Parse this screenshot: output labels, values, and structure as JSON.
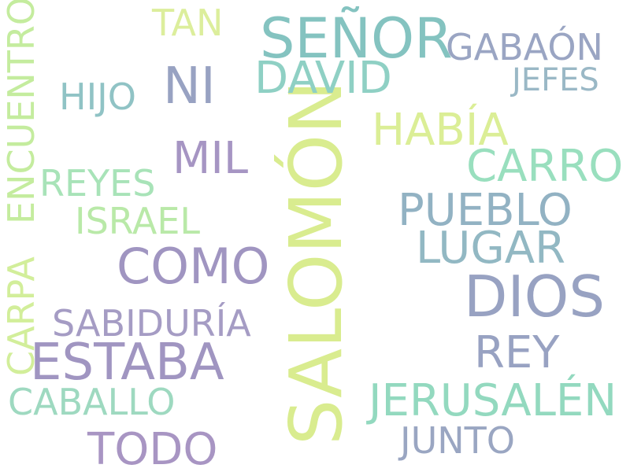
{
  "word_cloud": {
    "words": [
      {
        "key": "salomon",
        "text": "SALOMÓN",
        "color": "#d9ec8f"
      },
      {
        "key": "senor",
        "text": "SEÑOR",
        "color": "#84c3c0"
      },
      {
        "key": "dios",
        "text": "DIOS",
        "color": "#98a2c2"
      },
      {
        "key": "estaba",
        "text": "ESTABA",
        "color": "#a095c1"
      },
      {
        "key": "como",
        "text": "COMO",
        "color": "#a095c1"
      },
      {
        "key": "ni",
        "text": "NI",
        "color": "#98a2c2"
      },
      {
        "key": "pueblo",
        "text": "PUEBLO",
        "color": "#92b2c3"
      },
      {
        "key": "lugar",
        "text": "LUGAR",
        "color": "#92b8c3"
      },
      {
        "key": "rey",
        "text": "REY",
        "color": "#98a2c2"
      },
      {
        "key": "jerusalen",
        "text": "JERUSALÉN",
        "color": "#93d9bf"
      },
      {
        "key": "david",
        "text": "DAVID",
        "color": "#8fd0c4"
      },
      {
        "key": "mil",
        "text": "MIL",
        "color": "#a695c3"
      },
      {
        "key": "habia",
        "text": "HABÍA",
        "color": "#dbee96"
      },
      {
        "key": "carro",
        "text": "CARRO",
        "color": "#99dfbe"
      },
      {
        "key": "todo",
        "text": "TODO",
        "color": "#a895c3"
      },
      {
        "key": "gabaon",
        "text": "GABAÓN",
        "color": "#9aa5c3"
      },
      {
        "key": "sabiduria",
        "text": "SABIDURÍA",
        "color": "#a59cc4"
      },
      {
        "key": "caballo",
        "text": "CABALLO",
        "color": "#9ed9c0"
      },
      {
        "key": "israel",
        "text": "ISRAEL",
        "color": "#b9e9a8"
      },
      {
        "key": "reyes",
        "text": "REYES",
        "color": "#a8e3b8"
      },
      {
        "key": "hijo",
        "text": "HIJO",
        "color": "#90c3c5"
      },
      {
        "key": "junto",
        "text": "JUNTO",
        "color": "#9aa6c2"
      },
      {
        "key": "tan",
        "text": "TAN",
        "color": "#dcee9c"
      },
      {
        "key": "jefes",
        "text": "JEFES",
        "color": "#9ab8c6"
      },
      {
        "key": "encuentro",
        "text": "ENCUENTRO",
        "color": "#c4ec9e"
      },
      {
        "key": "carpa",
        "text": "CARPA",
        "color": "#d2ee9a"
      }
    ]
  }
}
